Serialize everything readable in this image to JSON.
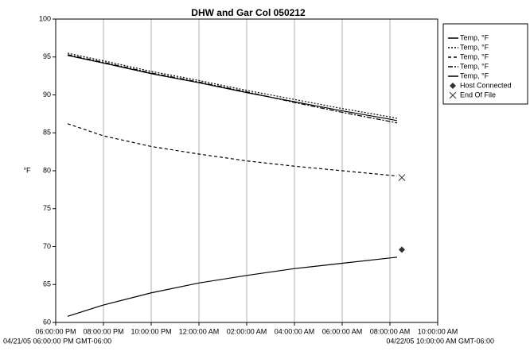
{
  "chart_data": {
    "type": "line",
    "title": "DHW and Gar Col 050212",
    "y_label": "°F",
    "start_label": "04/21/05 06:00:00 PM GMT-06:00",
    "end_label": "04/22/05 10:00:00 AM GMT-06:00",
    "xlim": [
      0,
      16
    ],
    "xticks": [
      {
        "value": 0,
        "label": "06:00:00 PM"
      },
      {
        "value": 2,
        "label": "08:00:00 PM"
      },
      {
        "value": 4,
        "label": "10:00:00 PM"
      },
      {
        "value": 6,
        "label": "12:00:00 AM"
      },
      {
        "value": 8,
        "label": "02:00:00 AM"
      },
      {
        "value": 10,
        "label": "04:00:00 AM"
      },
      {
        "value": 12,
        "label": "06:00:00 AM"
      },
      {
        "value": 14,
        "label": "08:00:00 AM"
      },
      {
        "value": 16,
        "label": "10:00:00 AM"
      }
    ],
    "ylim": [
      60,
      100
    ],
    "yticks": [
      60,
      65,
      70,
      75,
      80,
      85,
      90,
      95,
      100
    ],
    "grid": true,
    "legend": "right",
    "series": [
      {
        "name": "Temp, °F",
        "color": "#000000",
        "dash": "none",
        "x": [
          0.5,
          2,
          4,
          6,
          8,
          10,
          12,
          14,
          14.3
        ],
        "values": [
          95.2,
          94.2,
          92.8,
          91.6,
          90.3,
          89.1,
          87.9,
          86.8,
          86.6
        ]
      },
      {
        "name": "Temp, °F",
        "color": "#000000",
        "dash": "2,2",
        "x": [
          0.5,
          2,
          4,
          6,
          8,
          10,
          12,
          14,
          14.3
        ],
        "values": [
          95.5,
          94.5,
          93.1,
          91.9,
          90.6,
          89.4,
          88.2,
          87.1,
          86.9
        ]
      },
      {
        "name": "Temp, °F",
        "color": "#000000",
        "dash": "4,3",
        "x": [
          0.5,
          2,
          4,
          6,
          8,
          10,
          12,
          14,
          14.3
        ],
        "values": [
          86.2,
          84.6,
          83.2,
          82.2,
          81.3,
          80.6,
          80.0,
          79.4,
          79.3
        ]
      },
      {
        "name": "Temp, °F",
        "color": "#000000",
        "dash": "6,2,2,2",
        "x": [
          0.5,
          2,
          4,
          6,
          8,
          10,
          12,
          14,
          14.3
        ],
        "values": [
          95.3,
          94.3,
          92.9,
          91.7,
          90.4,
          89.0,
          87.7,
          86.5,
          86.3
        ]
      },
      {
        "name": "Temp, °F",
        "color": "#000000",
        "dash": "none",
        "x": [
          0.5,
          2,
          4,
          6,
          8,
          10,
          12,
          14,
          14.3
        ],
        "values": [
          60.8,
          62.3,
          63.9,
          65.2,
          66.2,
          67.1,
          67.8,
          68.5,
          68.6
        ]
      },
      {
        "name": "Host Connected",
        "color": "#333333",
        "marker": "diamond",
        "x": [
          14.5
        ],
        "values": [
          69.6
        ]
      },
      {
        "name": "End Of File",
        "color": "#333333",
        "marker": "x",
        "x": [
          14.5
        ],
        "values": [
          79.1
        ]
      }
    ]
  }
}
